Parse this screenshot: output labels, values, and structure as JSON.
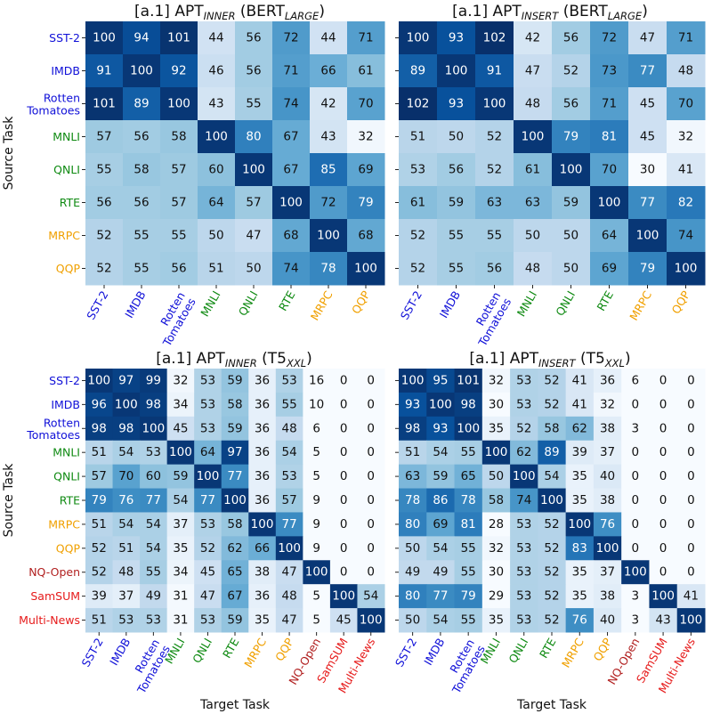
{
  "colors": {
    "blue": "#1010d8",
    "green": "#0f8a12",
    "orange": "#f0a000",
    "darkred": "#b11f1f",
    "red": "#e61a1a"
  },
  "chart_data": [
    {
      "type": "heatmap",
      "title_prefix": "[a.1] APT",
      "title_sub": "INNER",
      "title_mid": " (BERT",
      "title_sub2": "LARGE",
      "title_suffix": ")",
      "ylabel": "Source Task",
      "xlabel": "",
      "rows": [
        "SST-2",
        "IMDB",
        "Rotten Tomatoes",
        "MNLI",
        "QNLI",
        "RTE",
        "MRPC",
        "QQP"
      ],
      "cols": [
        "SST-2",
        "IMDB",
        "Rotten Tomatoes",
        "MNLI",
        "QNLI",
        "RTE",
        "MRPC",
        "QQP"
      ],
      "row_colors": [
        "blue",
        "blue",
        "blue",
        "green",
        "green",
        "green",
        "orange",
        "orange"
      ],
      "values": [
        [
          100,
          94,
          101,
          44,
          56,
          72,
          44,
          71
        ],
        [
          91,
          100,
          92,
          46,
          56,
          71,
          66,
          61
        ],
        [
          101,
          89,
          100,
          43,
          55,
          74,
          42,
          70
        ],
        [
          57,
          56,
          58,
          100,
          80,
          67,
          43,
          32
        ],
        [
          55,
          58,
          57,
          60,
          100,
          67,
          85,
          69
        ],
        [
          56,
          56,
          57,
          64,
          57,
          100,
          72,
          79
        ],
        [
          52,
          55,
          55,
          50,
          47,
          68,
          100,
          68
        ],
        [
          52,
          55,
          56,
          51,
          50,
          74,
          78,
          100
        ]
      ]
    },
    {
      "type": "heatmap",
      "title_prefix": "[a.1] APT",
      "title_sub": "INSERT",
      "title_mid": " (BERT",
      "title_sub2": "LARGE",
      "title_suffix": ")",
      "ylabel": "",
      "xlabel": "",
      "rows": [
        "SST-2",
        "IMDB",
        "Rotten Tomatoes",
        "MNLI",
        "QNLI",
        "RTE",
        "MRPC",
        "QQP"
      ],
      "cols": [
        "SST-2",
        "IMDB",
        "Rotten Tomatoes",
        "MNLI",
        "QNLI",
        "RTE",
        "MRPC",
        "QQP"
      ],
      "row_colors": [
        "blue",
        "blue",
        "blue",
        "green",
        "green",
        "green",
        "orange",
        "orange"
      ],
      "values": [
        [
          100,
          93,
          102,
          42,
          56,
          72,
          47,
          71
        ],
        [
          89,
          100,
          91,
          47,
          52,
          73,
          77,
          48
        ],
        [
          102,
          93,
          100,
          48,
          56,
          71,
          45,
          70
        ],
        [
          51,
          50,
          52,
          100,
          79,
          81,
          45,
          32
        ],
        [
          53,
          56,
          52,
          61,
          100,
          70,
          30,
          41
        ],
        [
          61,
          59,
          63,
          63,
          59,
          100,
          77,
          82
        ],
        [
          52,
          55,
          55,
          50,
          50,
          64,
          100,
          74
        ],
        [
          52,
          55,
          56,
          48,
          50,
          69,
          79,
          100
        ]
      ]
    },
    {
      "type": "heatmap",
      "title_prefix": "[a.1] APT",
      "title_sub": "INNER",
      "title_mid": " (T5",
      "title_sub2": "XXL",
      "title_suffix": ")",
      "ylabel": "Source Task",
      "xlabel": "Target Task",
      "rows": [
        "SST-2",
        "IMDB",
        "Rotten Tomatoes",
        "MNLI",
        "QNLI",
        "RTE",
        "MRPC",
        "QQP",
        "NQ-Open",
        "SamSUM",
        "Multi-News"
      ],
      "cols": [
        "SST-2",
        "IMDB",
        "Rotten Tomatoes",
        "MNLI",
        "QNLI",
        "RTE",
        "MRPC",
        "QQP",
        "NQ-Open",
        "SamSUM",
        "Multi-News"
      ],
      "row_colors": [
        "blue",
        "blue",
        "blue",
        "green",
        "green",
        "green",
        "orange",
        "orange",
        "darkred",
        "red",
        "red"
      ],
      "values": [
        [
          100,
          97,
          99,
          32,
          53,
          59,
          36,
          53,
          16,
          0,
          0
        ],
        [
          96,
          100,
          98,
          34,
          53,
          58,
          36,
          55,
          10,
          0,
          0
        ],
        [
          98,
          98,
          100,
          45,
          53,
          59,
          36,
          48,
          6,
          0,
          0
        ],
        [
          51,
          54,
          53,
          100,
          64,
          97,
          36,
          54,
          5,
          0,
          0
        ],
        [
          57,
          70,
          60,
          59,
          100,
          77,
          36,
          53,
          5,
          0,
          0
        ],
        [
          79,
          76,
          77,
          54,
          77,
          100,
          36,
          57,
          9,
          0,
          0
        ],
        [
          51,
          54,
          54,
          37,
          53,
          58,
          100,
          77,
          9,
          0,
          0
        ],
        [
          52,
          51,
          54,
          35,
          52,
          62,
          66,
          100,
          9,
          0,
          0
        ],
        [
          52,
          48,
          55,
          34,
          45,
          65,
          38,
          47,
          100,
          0,
          0
        ],
        [
          39,
          37,
          49,
          31,
          47,
          67,
          36,
          48,
          5,
          100,
          54
        ],
        [
          51,
          53,
          53,
          31,
          53,
          59,
          35,
          47,
          5,
          45,
          100
        ]
      ]
    },
    {
      "type": "heatmap",
      "title_prefix": "[a.1] APT",
      "title_sub": "INSERT",
      "title_mid": " (T5",
      "title_sub2": "XXL",
      "title_suffix": ")",
      "ylabel": "",
      "xlabel": "Target Task",
      "rows": [
        "SST-2",
        "IMDB",
        "Rotten Tomatoes",
        "MNLI",
        "QNLI",
        "RTE",
        "MRPC",
        "QQP",
        "NQ-Open",
        "SamSUM",
        "Multi-News"
      ],
      "cols": [
        "SST-2",
        "IMDB",
        "Rotten Tomatoes",
        "MNLI",
        "QNLI",
        "RTE",
        "MRPC",
        "QQP",
        "NQ-Open",
        "SamSUM",
        "Multi-News"
      ],
      "row_colors": [
        "blue",
        "blue",
        "blue",
        "green",
        "green",
        "green",
        "orange",
        "orange",
        "darkred",
        "red",
        "red"
      ],
      "values": [
        [
          100,
          95,
          101,
          32,
          53,
          52,
          41,
          36,
          6,
          0,
          0
        ],
        [
          93,
          100,
          98,
          30,
          53,
          52,
          41,
          32,
          0,
          0,
          0
        ],
        [
          98,
          93,
          100,
          35,
          52,
          58,
          62,
          38,
          3,
          0,
          0
        ],
        [
          51,
          54,
          55,
          100,
          62,
          89,
          39,
          37,
          0,
          0,
          0
        ],
        [
          63,
          59,
          65,
          50,
          100,
          54,
          35,
          40,
          0,
          0,
          0
        ],
        [
          78,
          86,
          78,
          58,
          74,
          100,
          35,
          38,
          0,
          0,
          0
        ],
        [
          80,
          69,
          81,
          28,
          53,
          52,
          100,
          76,
          0,
          0,
          0
        ],
        [
          50,
          54,
          55,
          32,
          53,
          52,
          83,
          100,
          0,
          0,
          0
        ],
        [
          49,
          49,
          55,
          30,
          53,
          52,
          35,
          37,
          100,
          0,
          0
        ],
        [
          80,
          77,
          79,
          29,
          53,
          52,
          35,
          38,
          3,
          100,
          41
        ],
        [
          50,
          54,
          55,
          35,
          53,
          52,
          76,
          40,
          3,
          43,
          100
        ]
      ]
    }
  ]
}
